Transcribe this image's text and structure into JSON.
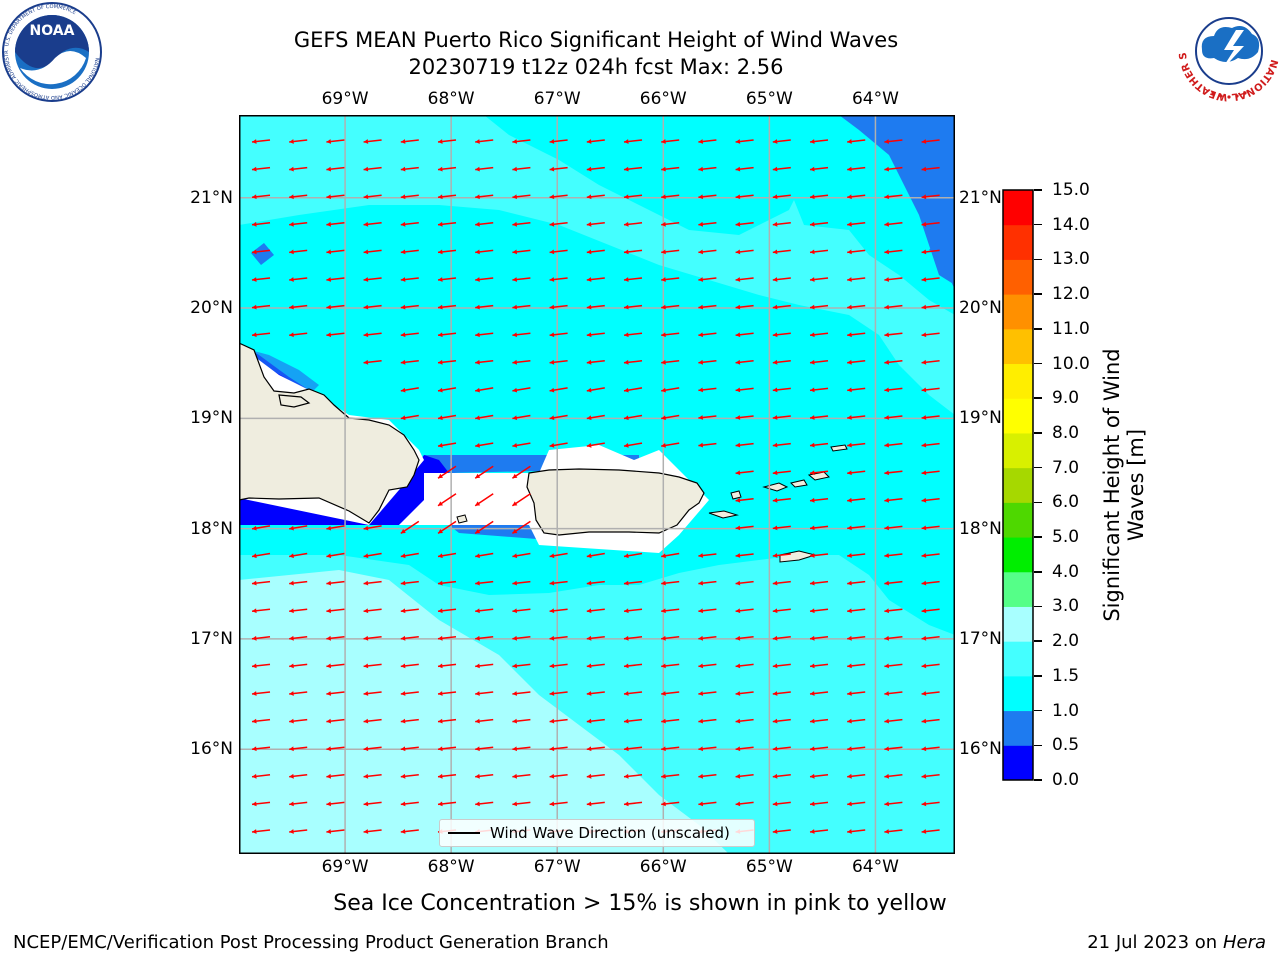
{
  "header": {
    "title_line1": "GEFS MEAN Puerto Rico Significant Height of Wind Waves",
    "title_line2": "20230719 t12z 024h fcst   Max: 2.56"
  },
  "logos": {
    "left": {
      "name": "NOAA",
      "ring_text": "NATIONAL OCEANIC AND ATMOSPHERIC ADMINISTRATION",
      "bottom_text": "U.S. DEPARTMENT OF COMMERCE",
      "primary_color": "#1a3d8c"
    },
    "right": {
      "name": "NATIONAL WEATHER SERVICE",
      "ring_color": "#d01c1c"
    }
  },
  "map": {
    "lon_labels": [
      "69°W",
      "68°W",
      "67°W",
      "66°W",
      "65°W",
      "64°W"
    ],
    "lat_labels": [
      "21°N",
      "20°N",
      "19°N",
      "18°N",
      "17°N",
      "16°N"
    ],
    "lon_range": [
      -70.0,
      -63.25
    ],
    "lat_range": [
      15.05,
      21.75
    ],
    "land_color": "#efeddf",
    "arrow_color": "#ff0000",
    "grid": true,
    "legend": {
      "label": "Wind Wave Direction (unscaled)",
      "placement": "bottom-center"
    }
  },
  "colorbar": {
    "title": "Significant Height of Wind Waves [m]",
    "ticks": [
      "0.0",
      "0.5",
      "1.0",
      "1.5",
      "2.0",
      "3.0",
      "4.0",
      "5.0",
      "6.0",
      "7.0",
      "8.0",
      "9.0",
      "10.0",
      "11.0",
      "12.0",
      "13.0",
      "14.0",
      "15.0"
    ],
    "colors": [
      "#0000ff",
      "#1e7bf0",
      "#00ffff",
      "#44ffff",
      "#a8ffff",
      "#55ff88",
      "#00ee00",
      "#4ed800",
      "#a6d800",
      "#d8f000",
      "#ffff00",
      "#ffee00",
      "#ffc000",
      "#ff9000",
      "#ff6000",
      "#ff3000",
      "#ff0000"
    ]
  },
  "caption": "Sea Ice Concentration > 15% is shown in pink to yellow",
  "footer": {
    "left": "NCEP/EMC/Verification Post Processing Product Generation Branch",
    "date": "21 Jul 2023 on ",
    "machine": "Hera"
  }
}
